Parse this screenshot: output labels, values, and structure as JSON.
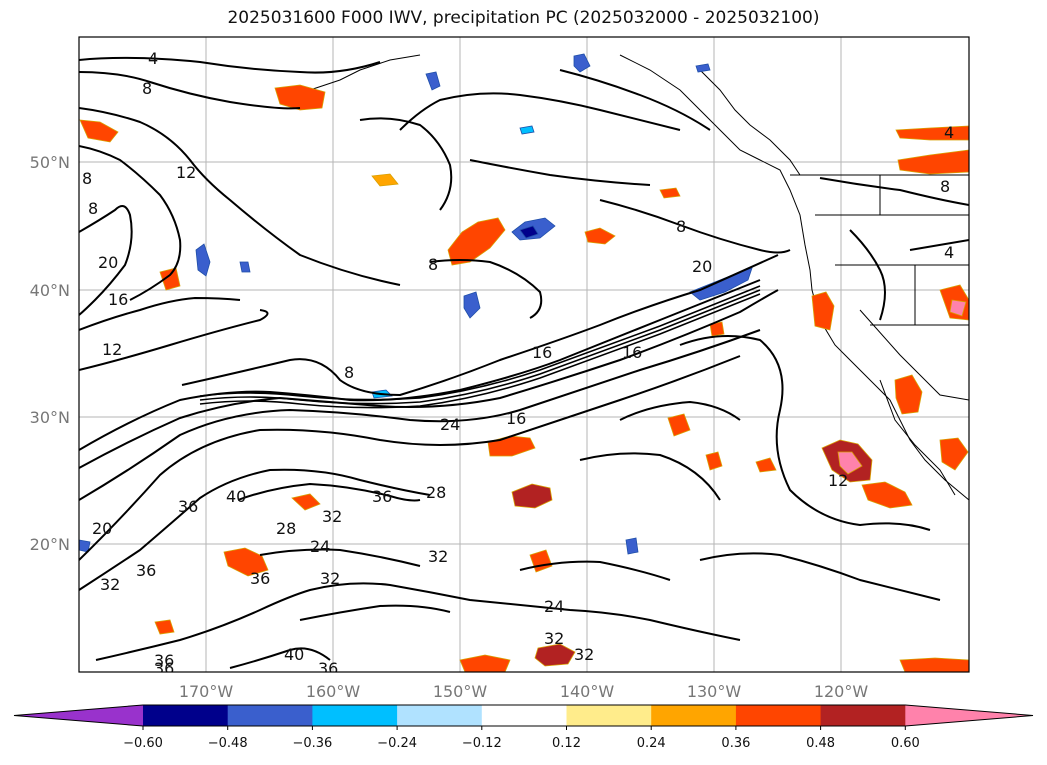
{
  "title": "2025031600 F000 IWV, precipitation PC (2025032000 - 2025032100)",
  "lat_labels": [
    "50°N",
    "40°N",
    "30°N",
    "20°N"
  ],
  "lon_labels": [
    "170°W",
    "160°W",
    "150°W",
    "140°W",
    "130°W",
    "120°W"
  ],
  "contour_labels": [
    "4",
    "8",
    "8",
    "12",
    "8",
    "20",
    "16",
    "12",
    "8",
    "8",
    "8",
    "20",
    "16",
    "16",
    "16",
    "24",
    "8",
    "4",
    "4",
    "36",
    "40",
    "36",
    "28",
    "28",
    "32",
    "24",
    "32",
    "20",
    "36",
    "36",
    "32",
    "32",
    "24",
    "32",
    "32",
    "40",
    "36",
    "36",
    "36",
    "12"
  ],
  "colorbar": {
    "ticks": [
      "−0.60",
      "−0.48",
      "−0.36",
      "−0.24",
      "−0.12",
      "0.12",
      "0.24",
      "0.36",
      "0.48",
      "0.60"
    ],
    "colors": [
      "#9932cc",
      "#00008b",
      "#3a5fcd",
      "#00bfff",
      "#b0e2ff",
      "#ffffff",
      "#ffec8b",
      "#ffa500",
      "#ff4500",
      "#b22222",
      "#ff82ab",
      "#ff82ab"
    ]
  }
}
